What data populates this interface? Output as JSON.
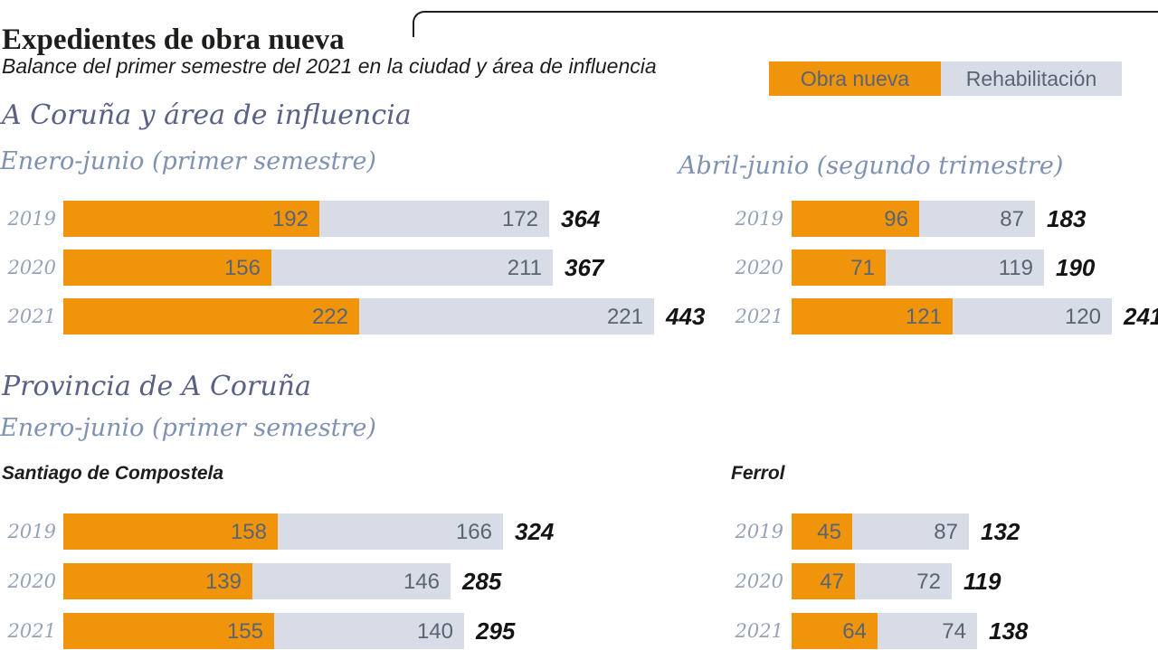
{
  "header": {
    "title": "Expedientes de obra nueva",
    "subtitle": "Balance del primer semestre del 2021 en la ciudad y área de influencia"
  },
  "legend": [
    {
      "label": "Obra nueva",
      "color": "#f0940c"
    },
    {
      "label": "Rehabilitación",
      "color": "#d7dce6"
    }
  ],
  "colors": {
    "obra_nueva": "#f0940c",
    "rehabilitacion": "#d7dce6",
    "section_title": "#5a6185",
    "chart_subtitle": "#8092b2",
    "year_label": "#96a2b8",
    "segment_value": "#5a6472",
    "total_value": "#141414"
  },
  "sections": [
    {
      "title": "A Coruña y área de influencia"
    },
    {
      "title": "Provincia de A Coruña",
      "subtitle": "Enero-junio (primer semestre)"
    }
  ],
  "chart_data": [
    {
      "type": "bar",
      "orientation": "horizontal",
      "stacked": true,
      "section": "A Coruña y área de influencia",
      "title": "Enero-junio (primer semestre)",
      "categories": [
        "2019",
        "2020",
        "2021"
      ],
      "series": [
        {
          "name": "Obra nueva",
          "values": [
            192,
            156,
            222
          ]
        },
        {
          "name": "Rehabilitación",
          "values": [
            172,
            211,
            221
          ]
        }
      ],
      "totals": [
        364,
        367,
        443
      ]
    },
    {
      "type": "bar",
      "orientation": "horizontal",
      "stacked": true,
      "section": "A Coruña y área de influencia",
      "title": "Abril-junio (segundo trimestre)",
      "categories": [
        "2019",
        "2020",
        "2021"
      ],
      "series": [
        {
          "name": "Obra nueva",
          "values": [
            96,
            71,
            121
          ]
        },
        {
          "name": "Rehabilitación",
          "values": [
            87,
            119,
            120
          ]
        }
      ],
      "totals": [
        183,
        190,
        241
      ]
    },
    {
      "type": "bar",
      "orientation": "horizontal",
      "stacked": true,
      "section": "Provincia de A Coruña",
      "title": "Santiago de Compostela",
      "categories": [
        "2019",
        "2020",
        "2021"
      ],
      "series": [
        {
          "name": "Obra nueva",
          "values": [
            158,
            139,
            155
          ]
        },
        {
          "name": "Rehabilitación",
          "values": [
            166,
            146,
            140
          ]
        }
      ],
      "totals": [
        324,
        285,
        295
      ]
    },
    {
      "type": "bar",
      "orientation": "horizontal",
      "stacked": true,
      "section": "Provincia de A Coruña",
      "title": "Ferrol",
      "categories": [
        "2019",
        "2020",
        "2021"
      ],
      "series": [
        {
          "name": "Obra nueva",
          "values": [
            45,
            47,
            64
          ]
        },
        {
          "name": "Rehabilitación",
          "values": [
            87,
            72,
            74
          ]
        }
      ],
      "totals": [
        132,
        119,
        138
      ]
    }
  ]
}
